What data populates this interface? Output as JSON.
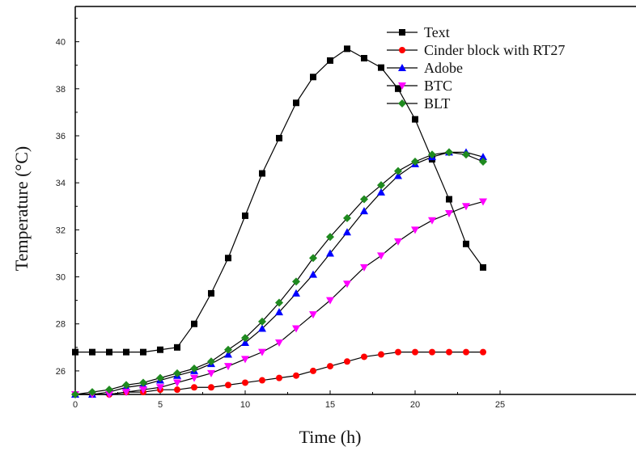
{
  "chart_data": {
    "type": "line",
    "title": "",
    "xlabel": "Time (h)",
    "ylabel": "Temperature (°C)",
    "xlim": [
      0,
      33
    ],
    "ylim": [
      25,
      41.5
    ],
    "x_ticks": [
      0,
      5,
      10,
      15,
      20,
      25
    ],
    "y_ticks": [
      26,
      28,
      30,
      32,
      34,
      36,
      38,
      40
    ],
    "legend_position": "top-right",
    "grid": false,
    "x": [
      0,
      1,
      2,
      3,
      4,
      5,
      6,
      7,
      8,
      9,
      10,
      11,
      12,
      13,
      14,
      15,
      16,
      17,
      18,
      19,
      20,
      21,
      22,
      23,
      24
    ],
    "series": [
      {
        "name": "Text",
        "color": "#000000",
        "marker": "square",
        "x": [
          0,
          1,
          2,
          3,
          4,
          5,
          6,
          7,
          8,
          9,
          10,
          11,
          12,
          13,
          14,
          15,
          16,
          17,
          18,
          19,
          20,
          21,
          22,
          23,
          24
        ],
        "values": [
          26.8,
          26.8,
          26.8,
          26.8,
          26.8,
          26.9,
          27.0,
          28.0,
          29.3,
          30.8,
          32.6,
          34.4,
          35.9,
          37.4,
          38.5,
          39.2,
          39.7,
          39.3,
          38.9,
          38.0,
          36.7,
          35.0,
          33.3,
          31.4,
          30.4
        ]
      },
      {
        "name": "Cinder block with RT27",
        "color": "#ff0000",
        "marker": "circle",
        "x": [
          0,
          1,
          2,
          3,
          4,
          5,
          6,
          7,
          8,
          9,
          10,
          11,
          12,
          13,
          14,
          15,
          16,
          17,
          18,
          19,
          20,
          21,
          22,
          23,
          24
        ],
        "values": [
          25.0,
          25.0,
          25.0,
          25.1,
          25.1,
          25.2,
          25.2,
          25.3,
          25.3,
          25.4,
          25.5,
          25.6,
          25.7,
          25.8,
          26.0,
          26.2,
          26.4,
          26.6,
          26.7,
          26.8,
          26.8,
          26.8,
          26.8,
          26.8,
          26.8
        ]
      },
      {
        "name": "Adobe",
        "color": "#0000ff",
        "marker": "triangle-up",
        "x": [
          0,
          1,
          2,
          3,
          4,
          5,
          6,
          7,
          8,
          9,
          10,
          11,
          12,
          13,
          14,
          15,
          16,
          17,
          18,
          19,
          20,
          21,
          22,
          23,
          24
        ],
        "values": [
          25.0,
          25.0,
          25.1,
          25.3,
          25.4,
          25.6,
          25.8,
          26.0,
          26.3,
          26.7,
          27.2,
          27.8,
          28.5,
          29.3,
          30.1,
          31.0,
          31.9,
          32.8,
          33.6,
          34.3,
          34.8,
          35.1,
          35.3,
          35.3,
          35.1
        ]
      },
      {
        "name": "BTC",
        "color": "#ff00ff",
        "marker": "triangle-down",
        "x": [
          0,
          1,
          2,
          3,
          4,
          5,
          6,
          7,
          8,
          9,
          10,
          11,
          12,
          13,
          14,
          15,
          16,
          17,
          18,
          19,
          20,
          21,
          22,
          23,
          24
        ],
        "values": [
          25.0,
          25.0,
          25.0,
          25.1,
          25.2,
          25.3,
          25.5,
          25.7,
          25.9,
          26.2,
          26.5,
          26.8,
          27.2,
          27.8,
          28.4,
          29.0,
          29.7,
          30.4,
          30.9,
          31.5,
          32.0,
          32.4,
          32.7,
          33.0,
          33.2
        ]
      },
      {
        "name": "BLT",
        "color": "#1f8a1f",
        "marker": "diamond",
        "x": [
          0,
          1,
          2,
          3,
          4,
          5,
          6,
          7,
          8,
          9,
          10,
          11,
          12,
          13,
          14,
          15,
          16,
          17,
          18,
          19,
          20,
          21,
          22,
          23,
          24
        ],
        "values": [
          25.0,
          25.1,
          25.2,
          25.4,
          25.5,
          25.7,
          25.9,
          26.1,
          26.4,
          26.9,
          27.4,
          28.1,
          28.9,
          29.8,
          30.8,
          31.7,
          32.5,
          33.3,
          33.9,
          34.5,
          34.9,
          35.2,
          35.3,
          35.2,
          34.9
        ]
      }
    ]
  }
}
